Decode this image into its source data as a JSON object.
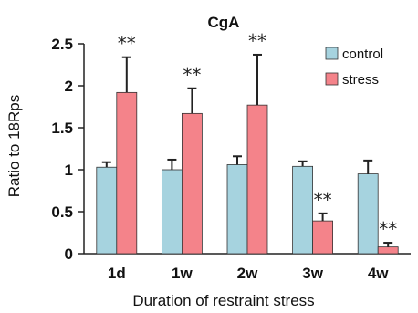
{
  "chart_data": {
    "type": "bar",
    "title": "CgA",
    "xlabel": "Duration of restraint stress",
    "ylabel": "Ratio to 18Rps",
    "ylim": [
      0,
      2.5
    ],
    "yticks": [
      0,
      0.5,
      1,
      1.5,
      2,
      2.5
    ],
    "ytick_labels": [
      "0",
      "0.5",
      "1",
      "1.5",
      "2",
      "2.5"
    ],
    "categories": [
      "1d",
      "1w",
      "2w",
      "3w",
      "4w"
    ],
    "series": [
      {
        "name": "control",
        "color": "#a6d3df",
        "values": [
          1.03,
          1.0,
          1.06,
          1.04,
          0.95
        ],
        "errors": [
          0.06,
          0.12,
          0.1,
          0.06,
          0.16
        ]
      },
      {
        "name": "stress",
        "color": "#f4838a",
        "values": [
          1.92,
          1.67,
          1.77,
          0.39,
          0.08
        ],
        "errors": [
          0.42,
          0.3,
          0.6,
          0.09,
          0.05
        ]
      }
    ],
    "significance": {
      "label": "**",
      "series": "stress",
      "categories": [
        "1d",
        "1w",
        "2w",
        "3w",
        "4w"
      ]
    },
    "legend_position": "top-right",
    "grid": false
  }
}
